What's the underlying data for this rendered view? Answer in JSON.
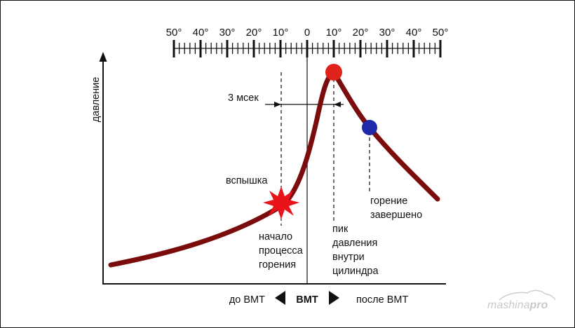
{
  "scale": {
    "labels": [
      "50°",
      "40°",
      "30°",
      "20°",
      "10°",
      "0",
      "10°",
      "20°",
      "30°",
      "40°",
      "50°"
    ]
  },
  "axis": {
    "ylabel": "давление"
  },
  "annotations": {
    "interval": "3 мсек",
    "flash": "вспышка",
    "combustion_start": [
      "начало",
      "процесса",
      "горения"
    ],
    "peak": [
      "пик",
      "давления",
      "внутри",
      "цилиндра"
    ],
    "combustion_end": [
      "горение",
      "завершено"
    ]
  },
  "bottom_bar": {
    "before": "до ВМТ",
    "center": "ВМТ",
    "after": "после ВМТ"
  },
  "watermark": {
    "part1": "mashina",
    "part2": "pro"
  },
  "colors": {
    "curve": "#7a0c0c",
    "peak_marker": "#e0231a",
    "end_marker": "#1f2aa8",
    "flash": "#e8141a",
    "axis": "#111111"
  }
}
